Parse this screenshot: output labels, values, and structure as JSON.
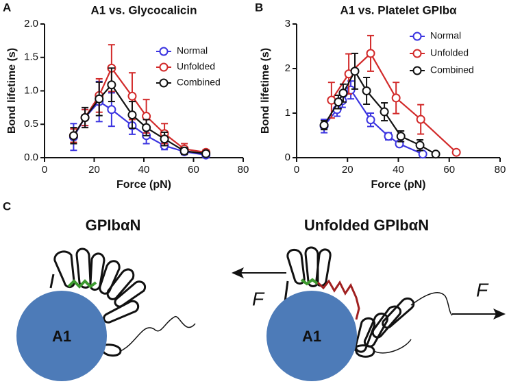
{
  "chart_data": [
    {
      "type": "line",
      "panel_label": "A",
      "title": "A1 vs. Glycocalicin",
      "x_label": "Force (pN)",
      "y_label": "Bond lifetime (s)",
      "xlim": [
        0,
        80
      ],
      "xticks": [
        0,
        20,
        40,
        60,
        80
      ],
      "ylim": [
        0,
        2.0
      ],
      "yticks": [
        {
          "value": 0,
          "label": "0.0"
        },
        0.5,
        {
          "value": 1,
          "label": "1.0"
        },
        1.5,
        {
          "value": 2,
          "label": "2.0"
        }
      ],
      "legend": "upper right",
      "series": [
        {
          "name": "Normal",
          "color": "#3b34e0",
          "x": [
            11.7,
            16.3,
            22,
            27,
            35.3,
            41,
            48.3,
            56.3,
            65
          ],
          "values": [
            0.31,
            0.6,
            0.84,
            0.72,
            0.48,
            0.33,
            0.18,
            0.09,
            0.04
          ],
          "errors": [
            0.2,
            0.12,
            0.3,
            0.25,
            0.13,
            0.12,
            0.06,
            0.04,
            0.02
          ]
        },
        {
          "name": "Unfolded",
          "color": "#d22a2a",
          "x": [
            11.7,
            16.3,
            22,
            27,
            35.3,
            41,
            48.3,
            56.3,
            65
          ],
          "values": [
            0.33,
            0.6,
            0.93,
            1.34,
            0.92,
            0.62,
            0.36,
            0.13,
            0.08
          ],
          "errors": [
            0.1,
            0.12,
            0.25,
            0.35,
            0.35,
            0.25,
            0.15,
            0.08,
            0.04
          ]
        },
        {
          "name": "Combined",
          "color": "#111111",
          "x": [
            11.7,
            16.3,
            22,
            27,
            35.3,
            41,
            48.3,
            56.3,
            65
          ],
          "values": [
            0.33,
            0.6,
            0.88,
            1.09,
            0.64,
            0.45,
            0.28,
            0.1,
            0.06
          ],
          "errors": [
            0.12,
            0.15,
            0.25,
            0.25,
            0.2,
            0.12,
            0.1,
            0.05,
            0.03
          ]
        }
      ]
    },
    {
      "type": "line",
      "panel_label": "B",
      "title": "A1 vs. Platelet GPIbα",
      "x_label": "Force (pN)",
      "y_label": "Bond lifetime (s)",
      "xlim": [
        0,
        80
      ],
      "xticks": [
        0,
        20,
        40,
        60,
        80
      ],
      "ylim": [
        0,
        3
      ],
      "yticks": [
        0,
        1,
        2,
        3
      ],
      "legend": "upper right",
      "series": [
        {
          "name": "Normal",
          "color": "#3b34e0",
          "x": [
            10.8,
            15.9,
            18,
            21.3,
            29.1,
            36.1,
            40.4,
            49.6
          ],
          "values": [
            0.71,
            1.08,
            1.28,
            1.52,
            0.85,
            0.48,
            0.31,
            0.08
          ],
          "errors": [
            0.15,
            0.15,
            0.15,
            0.2,
            0.15,
            0.08,
            0.06,
            0.03
          ]
        },
        {
          "name": "Unfolded",
          "color": "#d22a2a",
          "x": [
            13.7,
            20.5,
            29.1,
            39.1,
            48.8,
            62.8
          ],
          "values": [
            1.29,
            1.88,
            2.34,
            1.34,
            0.86,
            0.12
          ],
          "errors": [
            0.4,
            0.45,
            0.4,
            0.35,
            0.33,
            0.03
          ]
        },
        {
          "name": "Combined",
          "color": "#111111",
          "x": [
            10.8,
            16.4,
            18.3,
            22.9,
            27.5,
            34.5,
            41,
            48.5,
            54.7
          ],
          "values": [
            0.73,
            1.25,
            1.45,
            1.94,
            1.5,
            1.03,
            0.48,
            0.28,
            0.08
          ],
          "errors": [
            0.1,
            0.15,
            0.2,
            0.4,
            0.3,
            0.2,
            0.12,
            0.12,
            0.02
          ]
        }
      ]
    }
  ],
  "diagram": {
    "panel_label": "C",
    "left_title": "GPIbαN",
    "right_title": "Unfolded GPIbαN",
    "left_circle": "A1",
    "right_circle": "A1",
    "force_left": "F",
    "force_right": "F"
  }
}
